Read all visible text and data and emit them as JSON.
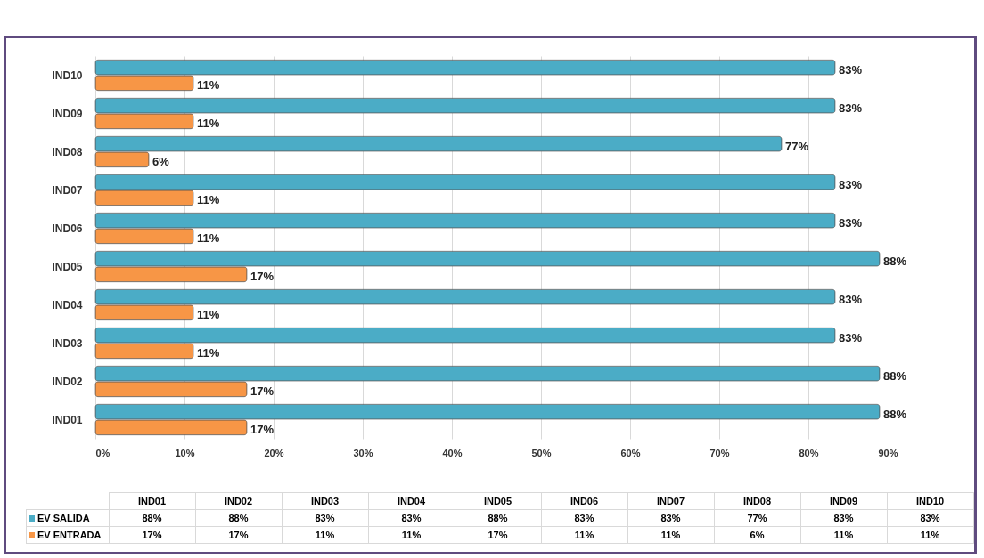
{
  "chart_data": {
    "type": "bar",
    "orientation": "horizontal",
    "categories": [
      "IND10",
      "IND09",
      "IND08",
      "IND07",
      "IND06",
      "IND05",
      "IND04",
      "IND03",
      "IND02",
      "IND01"
    ],
    "series": [
      {
        "name": "EV SALIDA",
        "color": "#4bacc6",
        "values": [
          83,
          83,
          77,
          83,
          83,
          88,
          83,
          83,
          88,
          88
        ],
        "value_labels": [
          "83%",
          "83%",
          "77%",
          "83%",
          "83%",
          "88%",
          "83%",
          "83%",
          "88%",
          "88%"
        ]
      },
      {
        "name": "EV ENTRADA",
        "color": "#f79646",
        "values": [
          11,
          11,
          6,
          11,
          11,
          17,
          11,
          11,
          17,
          17
        ],
        "value_labels": [
          "11%",
          "11%",
          "6%",
          "11%",
          "11%",
          "17%",
          "11%",
          "11%",
          "17%",
          "17%"
        ]
      }
    ],
    "xlim": [
      0,
      90
    ],
    "xticks": [
      {
        "value": 0,
        "label": "0%"
      },
      {
        "value": 10,
        "label": "10%"
      },
      {
        "value": 20,
        "label": "20%"
      },
      {
        "value": 30,
        "label": "30%"
      },
      {
        "value": 40,
        "label": "40%"
      },
      {
        "value": 50,
        "label": "50%"
      },
      {
        "value": 60,
        "label": "60%"
      },
      {
        "value": 70,
        "label": "70%"
      },
      {
        "value": 80,
        "label": "80%"
      },
      {
        "value": 90,
        "label": "90%"
      }
    ],
    "grid": "x",
    "legend": "bottom"
  }
}
